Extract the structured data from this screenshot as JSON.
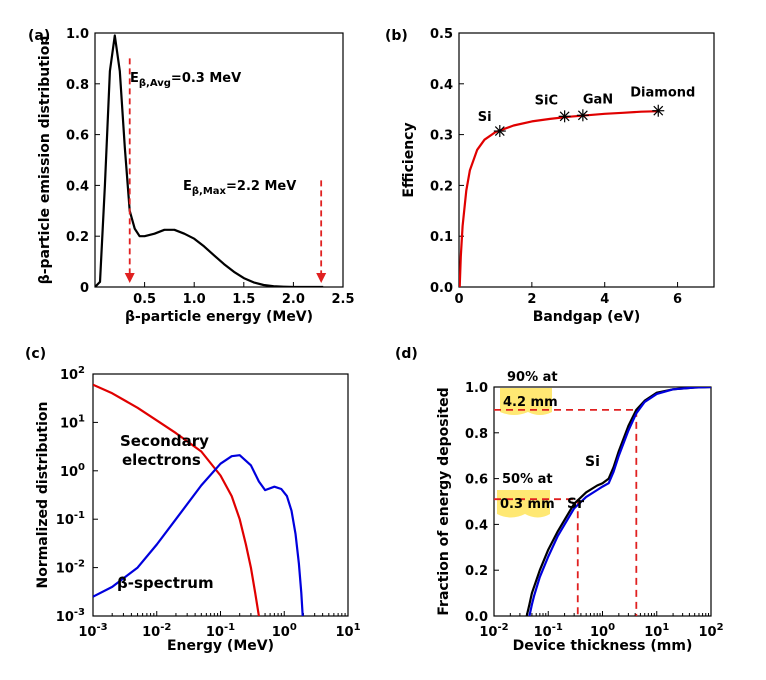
{
  "chart_data": [
    {
      "type": "line",
      "panel_label": "(a)",
      "xlabel": "β-particle energy (MeV)",
      "ylabel": "β-particle emission distribution",
      "xlim": [
        0,
        2.5
      ],
      "ylim": [
        0,
        1.0
      ],
      "xticks": [
        "0.5",
        "1.0",
        "1.5",
        "2.0",
        "2.5"
      ],
      "yticks": [
        "0",
        "0.2",
        "0.4",
        "0.6",
        "0.8",
        "1.0"
      ],
      "series": [
        {
          "name": "β-particle emission distribution",
          "color": "#000000",
          "x": [
            0,
            0.05,
            0.1,
            0.15,
            0.2,
            0.25,
            0.3,
            0.35,
            0.4,
            0.45,
            0.5,
            0.6,
            0.7,
            0.8,
            0.9,
            1.0,
            1.1,
            1.2,
            1.3,
            1.4,
            1.5,
            1.6,
            1.7,
            1.8,
            1.9,
            2.0,
            2.1,
            2.2,
            2.3
          ],
          "y": [
            0,
            0.02,
            0.4,
            0.85,
            0.99,
            0.85,
            0.55,
            0.3,
            0.23,
            0.2,
            0.2,
            0.21,
            0.225,
            0.225,
            0.21,
            0.19,
            0.16,
            0.125,
            0.09,
            0.06,
            0.035,
            0.018,
            0.008,
            0.003,
            0.001,
            0,
            0,
            0,
            0
          ]
        }
      ],
      "annotations": [
        {
          "main": "E",
          "sub": "β,Avg",
          "rest": "=0.3 MeV",
          "x": 0.35
        },
        {
          "main": "E",
          "sub": "β,Max",
          "rest": "=2.2 MeV",
          "x": 2.28
        }
      ]
    },
    {
      "type": "line",
      "panel_label": "(b)",
      "xlabel": "Bandgap (eV)",
      "ylabel": "Efficiency",
      "xlim": [
        0,
        7
      ],
      "ylim": [
        0,
        0.5
      ],
      "xticks": [
        "0",
        "2",
        "4",
        "6"
      ],
      "yticks": [
        "0.0",
        "0.1",
        "0.2",
        "0.3",
        "0.4",
        "0.5"
      ],
      "series": [
        {
          "name": "Efficiency",
          "color": "#e00000",
          "x": [
            0.02,
            0.05,
            0.1,
            0.2,
            0.3,
            0.5,
            0.7,
            1.0,
            1.5,
            2.0,
            2.5,
            3.0,
            3.5,
            4.0,
            4.5,
            5.0,
            5.5
          ],
          "y": [
            0.0,
            0.06,
            0.12,
            0.19,
            0.23,
            0.27,
            0.29,
            0.305,
            0.318,
            0.326,
            0.331,
            0.335,
            0.338,
            0.341,
            0.343,
            0.345,
            0.346
          ]
        }
      ],
      "points": [
        {
          "label": "Si",
          "x": 1.12,
          "y": 0.307
        },
        {
          "label": "SiC",
          "x": 2.9,
          "y": 0.336
        },
        {
          "label": "GaN",
          "x": 3.4,
          "y": 0.338
        },
        {
          "label": "Diamond",
          "x": 5.47,
          "y": 0.347
        }
      ]
    },
    {
      "type": "line",
      "panel_label": "(c)",
      "xlabel": "Energy (MeV)",
      "ylabel": "Normalized distribution",
      "xscale": "log",
      "yscale": "log",
      "xlim": [
        0.001,
        10
      ],
      "ylim": [
        0.001,
        100
      ],
      "xticks": [
        {
          "base": "10",
          "exp": "-3"
        },
        {
          "base": "10",
          "exp": "-2"
        },
        {
          "base": "10",
          "exp": "-1"
        },
        {
          "base": "10",
          "exp": "0"
        },
        {
          "base": "10",
          "exp": "1"
        }
      ],
      "yticks": [
        {
          "base": "10",
          "exp": "-3"
        },
        {
          "base": "10",
          "exp": "-2"
        },
        {
          "base": "10",
          "exp": "-1"
        },
        {
          "base": "10",
          "exp": "0"
        },
        {
          "base": "10",
          "exp": "1"
        },
        {
          "base": "10",
          "exp": "2"
        }
      ],
      "series": [
        {
          "name": "Secondary electrons",
          "label_lines": [
            "Secondary",
            "electrons"
          ],
          "color": "#e00000",
          "x": [
            0.001,
            0.002,
            0.005,
            0.01,
            0.02,
            0.05,
            0.1,
            0.15,
            0.2,
            0.25,
            0.3,
            0.35,
            0.4
          ],
          "y": [
            60,
            40,
            20,
            11,
            6,
            2.5,
            0.8,
            0.3,
            0.1,
            0.03,
            0.01,
            0.003,
            0.001
          ]
        },
        {
          "name": "β-spectrum",
          "label_lines": [
            "β-spectrum"
          ],
          "color": "#0000dd",
          "x": [
            0.001,
            0.002,
            0.005,
            0.01,
            0.02,
            0.05,
            0.1,
            0.15,
            0.2,
            0.3,
            0.4,
            0.5,
            0.7,
            0.9,
            1.1,
            1.3,
            1.5,
            1.7,
            1.85,
            1.95
          ],
          "y": [
            0.0025,
            0.004,
            0.01,
            0.03,
            0.1,
            0.5,
            1.4,
            2.0,
            2.1,
            1.3,
            0.6,
            0.4,
            0.47,
            0.42,
            0.3,
            0.15,
            0.05,
            0.012,
            0.003,
            0.001
          ]
        }
      ]
    },
    {
      "type": "line",
      "panel_label": "(d)",
      "xlabel": "Device thickness (mm)",
      "ylabel": "Fraction of energy deposited",
      "xscale": "log",
      "xlim": [
        0.01,
        100
      ],
      "ylim": [
        0,
        1.0
      ],
      "xticks": [
        {
          "base": "10",
          "exp": "-2"
        },
        {
          "base": "10",
          "exp": "-1"
        },
        {
          "base": "10",
          "exp": "0"
        },
        {
          "base": "10",
          "exp": "1"
        },
        {
          "base": "10",
          "exp": "2"
        }
      ],
      "yticks": [
        "0.0",
        "0.2",
        "0.4",
        "0.6",
        "0.8",
        "1.0"
      ],
      "series": [
        {
          "name": "Si",
          "color": "#000000",
          "x": [
            0.04,
            0.045,
            0.05,
            0.07,
            0.1,
            0.15,
            0.2,
            0.3,
            0.5,
            0.8,
            1.0,
            1.3,
            1.6,
            2.0,
            3.0,
            4.2,
            6.0,
            10,
            20,
            50,
            100
          ],
          "y": [
            0,
            0.05,
            0.1,
            0.2,
            0.29,
            0.37,
            0.42,
            0.49,
            0.54,
            0.57,
            0.58,
            0.6,
            0.65,
            0.72,
            0.83,
            0.9,
            0.94,
            0.975,
            0.99,
            0.998,
            1.0
          ]
        },
        {
          "name": "Sr",
          "color": "#0000dd",
          "x": [
            0.045,
            0.05,
            0.055,
            0.07,
            0.1,
            0.15,
            0.2,
            0.3,
            0.5,
            0.8,
            1.0,
            1.3,
            1.6,
            2.0,
            3.0,
            4.2,
            6.0,
            10,
            20,
            50,
            100
          ],
          "y": [
            0,
            0.05,
            0.09,
            0.17,
            0.26,
            0.35,
            0.4,
            0.47,
            0.52,
            0.55,
            0.565,
            0.58,
            0.63,
            0.7,
            0.81,
            0.885,
            0.935,
            0.97,
            0.99,
            0.998,
            1.0
          ]
        }
      ],
      "annotations": [
        {
          "lines": [
            "90% at",
            "4.2 mm"
          ],
          "x": 4.2,
          "y": 0.9
        },
        {
          "lines": [
            "50% at",
            "0.3 mm"
          ],
          "x": 0.35,
          "y": 0.51
        }
      ]
    }
  ]
}
